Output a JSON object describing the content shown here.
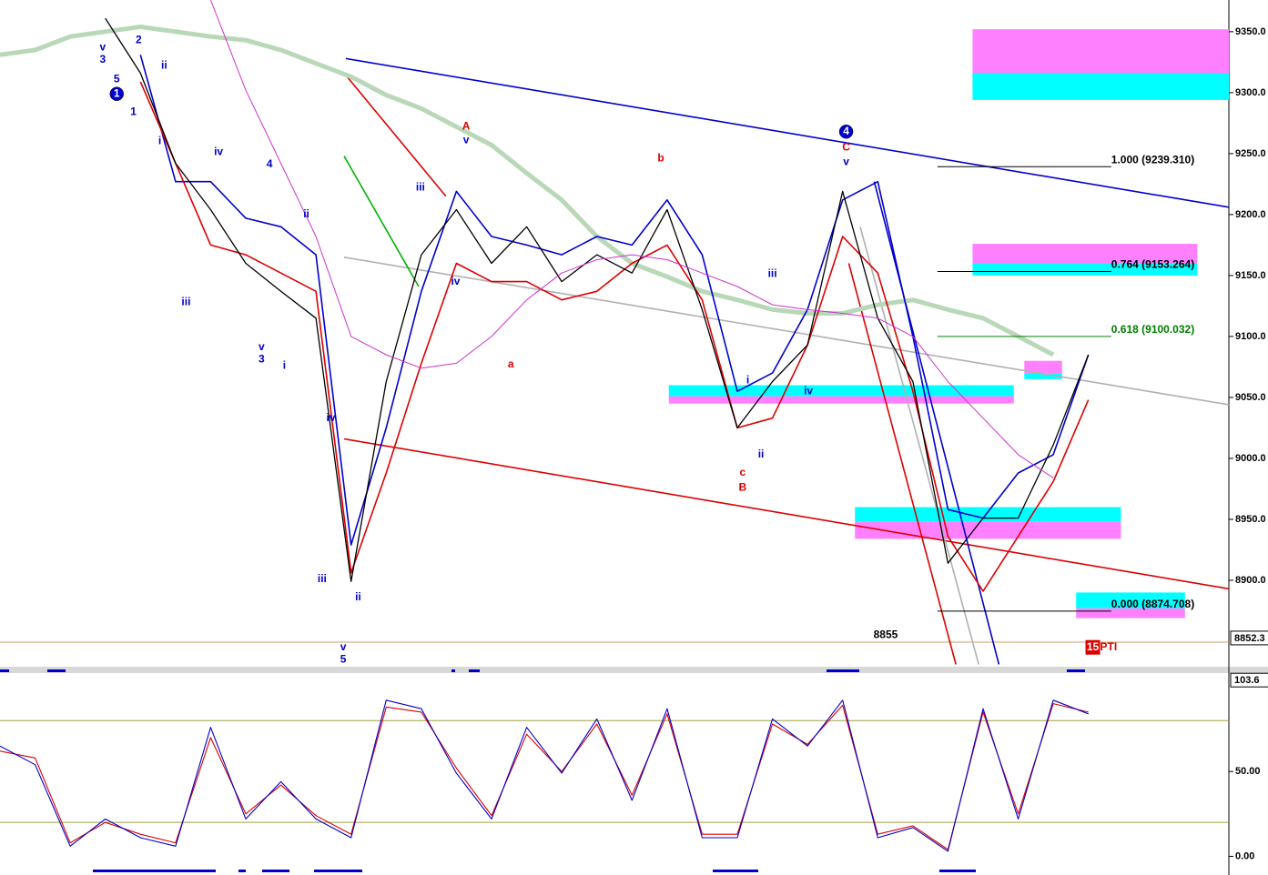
{
  "chart_data": [
    {
      "type": "line",
      "xlim": [
        0,
        140
      ],
      "ylim": [
        8850,
        9376
      ],
      "grid": false,
      "yticks": [
        {
          "value": 8900,
          "label": "8900.0"
        },
        {
          "value": 8950,
          "label": "8950.0"
        },
        {
          "value": 9000,
          "label": "9000.0"
        },
        {
          "value": 9050,
          "label": "9050.0"
        },
        {
          "value": 9100,
          "label": "9100.0"
        },
        {
          "value": 9150,
          "label": "9150.0"
        },
        {
          "value": 9200,
          "label": "9200.0"
        },
        {
          "value": 9250,
          "label": "9250.0"
        },
        {
          "value": 9300,
          "label": "9300.0"
        },
        {
          "value": 9350,
          "label": "9350.0"
        }
      ],
      "x": [
        0,
        4,
        8,
        12,
        16,
        20,
        24,
        28,
        32,
        36,
        40,
        44,
        48,
        52,
        56,
        60,
        64,
        68,
        72,
        76,
        80,
        84,
        88,
        92,
        96,
        100,
        104,
        108,
        112,
        116,
        120,
        124
      ],
      "series": [
        {
          "color": "#000000",
          "values": [
            null,
            null,
            null,
            9361,
            9316,
            9242,
            9204,
            9160,
            9137,
            9115,
            8899,
            9063,
            9167,
            9204,
            9160,
            9190,
            9145,
            9167,
            9152,
            9204,
            9122,
            9025,
            9063,
            9093,
            9219,
            9115,
            9063,
            8914,
            8951,
            8951,
            9011,
            9085
          ]
        },
        {
          "color": "#0000cc",
          "values": [
            null,
            null,
            null,
            null,
            9331,
            9227,
            9227,
            9197,
            9190,
            9167,
            8929,
            9025,
            9137,
            9219,
            9182,
            9175,
            9167,
            9182,
            9175,
            9212,
            9167,
            9055,
            9070,
            9122,
            9212,
            9227,
            9100,
            8958,
            8951,
            8988,
            9003,
            9085
          ]
        },
        {
          "color": "#dd0000",
          "values": [
            null,
            null,
            null,
            null,
            9309,
            9242,
            9175,
            9167,
            9152,
            9137,
            8906,
            8988,
            9078,
            9160,
            9145,
            9145,
            9130,
            9137,
            9160,
            9175,
            9130,
            9025,
            9033,
            9093,
            9182,
            9152,
            9055,
            8936,
            8891,
            8936,
            8981,
            9048
          ]
        },
        {
          "color": "#b8d8b8",
          "values": [
            9331,
            9335,
            9346,
            9350,
            9354,
            9350,
            9346,
            9343,
            9335,
            9324,
            9313,
            9298,
            9287,
            9272,
            9257,
            9234,
            9212,
            9182,
            9160,
            9149,
            9137,
            9130,
            9122,
            9119,
            9119,
            9126,
            9130,
            9122,
            9115,
            9100,
            9085,
            null
          ]
        },
        {
          "color": "#cc33cc",
          "values": [
            null,
            null,
            null,
            null,
            null,
            null,
            9376,
            9302,
            9242,
            9182,
            9100,
            9085,
            9074,
            9078,
            9100,
            9130,
            9152,
            9163,
            9167,
            9163,
            9152,
            9141,
            9126,
            9122,
            9119,
            9115,
            9100,
            9063,
            9033,
            9003,
            8984,
            null
          ]
        }
      ],
      "trendlines": [
        {
          "color": "#0000cc",
          "x": [
            39.4,
            140
          ],
          "y": [
            9328,
            9206
          ]
        },
        {
          "color": "#dd0000",
          "x": [
            39.2,
            140
          ],
          "y": [
            9016,
            8893
          ]
        },
        {
          "color": "#b0b0b0",
          "x": [
            39.2,
            140
          ],
          "y": [
            9165,
            9044
          ]
        },
        {
          "color": "#dd0000",
          "x": [
            96.7,
            108.9
          ],
          "y": [
            9160,
            8831
          ]
        },
        {
          "color": "#0000cc",
          "x": [
            99.6,
            113.8
          ],
          "y": [
            9227,
            8831
          ]
        },
        {
          "color": "#b0b0b0",
          "x": [
            98,
            111.5
          ],
          "y": [
            9190,
            8831
          ]
        },
        {
          "color": "#00b000",
          "x": [
            39.2,
            47.7
          ],
          "y": [
            9248,
            9141
          ]
        },
        {
          "color": "#dd0000",
          "x": [
            39.2,
            50.8
          ],
          "y": [
            9316,
            9215
          ]
        }
      ],
      "zones": [
        {
          "color": "#ff80ff",
          "x": [
            110.8,
            140
          ],
          "y": [
            9305,
            9352
          ]
        },
        {
          "color": "#00ffff",
          "x": [
            110.8,
            140
          ],
          "y": [
            9294,
            9316
          ]
        },
        {
          "color": "#ff80ff",
          "x": [
            110.8,
            136.4
          ],
          "y": [
            9160,
            9176
          ]
        },
        {
          "color": "#00ffff",
          "x": [
            110.8,
            136.4
          ],
          "y": [
            9150,
            9160
          ]
        },
        {
          "color": "#00ffff",
          "x": [
            76.2,
            115.5
          ],
          "y": [
            9051,
            9060
          ]
        },
        {
          "color": "#ff80ff",
          "x": [
            76.2,
            115.5
          ],
          "y": [
            9045,
            9051
          ]
        },
        {
          "color": "#00ffff",
          "x": [
            97.4,
            127.7
          ],
          "y": [
            8948,
            8960
          ]
        },
        {
          "color": "#ff80ff",
          "x": [
            97.4,
            127.7
          ],
          "y": [
            8934,
            8948
          ]
        },
        {
          "color": "#ff80ff",
          "x": [
            116.7,
            121
          ],
          "y": [
            9070,
            9080
          ]
        },
        {
          "color": "#00ffff",
          "x": [
            116.7,
            121
          ],
          "y": [
            9065,
            9070
          ]
        },
        {
          "color": "#00ffff",
          "x": [
            122.6,
            135
          ],
          "y": [
            8877,
            8890
          ]
        },
        {
          "color": "#ff80ff",
          "x": [
            122.6,
            135
          ],
          "y": [
            8869,
            8877
          ]
        }
      ],
      "fib": {
        "x": [
          106.8,
          126.6
        ],
        "levels": [
          {
            "value": 9239.31,
            "label": "1.000 (9239.310)",
            "color": "#000000"
          },
          {
            "value": 9153.264,
            "label": "0.764 (9153.264)",
            "color": "#000000"
          },
          {
            "value": 9100.032,
            "label": "0.618 (9100.032)",
            "color": "#008000"
          },
          {
            "value": 8874.708,
            "label": "0.000 (8874.708)",
            "color": "#000000"
          }
        ]
      },
      "price_marker": 8852.3,
      "annotations": [
        {
          "text": "v",
          "x": 11.7,
          "y": 9337,
          "color": "#0000cc"
        },
        {
          "text": "3",
          "x": 11.7,
          "y": 9327,
          "color": "#0000cc"
        },
        {
          "text": "5",
          "x": 13.3,
          "y": 9311,
          "color": "#0000cc"
        },
        {
          "text": "1",
          "x": 13.3,
          "y": 9299,
          "color": "#0000cc",
          "circle": true
        },
        {
          "text": "2",
          "x": 15.8,
          "y": 9343,
          "color": "#0000cc"
        },
        {
          "text": "ii",
          "x": 18.7,
          "y": 9322,
          "color": "#0000cc"
        },
        {
          "text": "1",
          "x": 15.2,
          "y": 9284,
          "color": "#0000cc"
        },
        {
          "text": "i",
          "x": 18.2,
          "y": 9260,
          "color": "#0000cc"
        },
        {
          "text": "iv",
          "x": 24.9,
          "y": 9251,
          "color": "#0000cc"
        },
        {
          "text": "4",
          "x": 30.7,
          "y": 9241,
          "color": "#0000cc"
        },
        {
          "text": "ii",
          "x": 34.9,
          "y": 9200,
          "color": "#0000cc"
        },
        {
          "text": "iii",
          "x": 21.2,
          "y": 9128,
          "color": "#0000cc"
        },
        {
          "text": "v",
          "x": 29.8,
          "y": 9091,
          "color": "#0000cc"
        },
        {
          "text": "3",
          "x": 29.8,
          "y": 9081,
          "color": "#0000cc"
        },
        {
          "text": "i",
          "x": 32.4,
          "y": 9076,
          "color": "#0000cc"
        },
        {
          "text": "iii",
          "x": 47.9,
          "y": 9222,
          "color": "#0000cc"
        },
        {
          "text": "iv",
          "x": 51.9,
          "y": 9145,
          "color": "#0000cc"
        },
        {
          "text": "A",
          "x": 53.1,
          "y": 9272,
          "color": "#dd0000"
        },
        {
          "text": "v",
          "x": 53.1,
          "y": 9261,
          "color": "#0000cc"
        },
        {
          "text": "a",
          "x": 58.2,
          "y": 9077,
          "color": "#dd0000"
        },
        {
          "text": "b",
          "x": 75.3,
          "y": 9246,
          "color": "#dd0000"
        },
        {
          "text": "iv",
          "x": 37.7,
          "y": 9033,
          "color": "#0000cc"
        },
        {
          "text": "iii",
          "x": 36.7,
          "y": 8901,
          "color": "#0000cc"
        },
        {
          "text": "ii",
          "x": 40.8,
          "y": 8886,
          "color": "#0000cc"
        },
        {
          "text": "v",
          "x": 39.1,
          "y": 8845,
          "color": "#0000cc"
        },
        {
          "text": "5",
          "x": 39.1,
          "y": 8835,
          "color": "#0000cc"
        },
        {
          "text": "iii",
          "x": 88,
          "y": 9151,
          "color": "#0000cc"
        },
        {
          "text": "i",
          "x": 85.2,
          "y": 9064,
          "color": "#0000cc"
        },
        {
          "text": "iv",
          "x": 92.1,
          "y": 9055,
          "color": "#0000cc"
        },
        {
          "text": "ii",
          "x": 86.7,
          "y": 9003,
          "color": "#0000cc"
        },
        {
          "text": "c",
          "x": 84.6,
          "y": 8988,
          "color": "#dd0000"
        },
        {
          "text": "B",
          "x": 84.6,
          "y": 8976,
          "color": "#dd0000"
        },
        {
          "text": "4",
          "x": 96.4,
          "y": 9268,
          "color": "#0000cc",
          "circle": true
        },
        {
          "text": "C",
          "x": 96.4,
          "y": 9255,
          "color": "#dd0000"
        },
        {
          "text": "v",
          "x": 96.4,
          "y": 9243,
          "color": "#0000cc"
        },
        {
          "text": "8855",
          "x": 100.9,
          "y": 8855,
          "color": "#000000"
        },
        {
          "text": "15",
          "x": 124.5,
          "y": 8845,
          "color": "#dd0000",
          "box": true
        },
        {
          "text": "PTI",
          "x": 126.3,
          "y": 8845,
          "color": "#dd0000"
        }
      ]
    },
    {
      "type": "line",
      "xlim": [
        0,
        140
      ],
      "ylim": [
        -11,
        108
      ],
      "grid": false,
      "yticks": [
        {
          "value": 0,
          "label": "0.00"
        },
        {
          "value": 50,
          "label": "50.00"
        }
      ],
      "levels": [
        20,
        80
      ],
      "level_color": "#a0a040",
      "price_marker": 103.6,
      "x": [
        0,
        4,
        8,
        12,
        16,
        20,
        24,
        28,
        32,
        36,
        40,
        44,
        48,
        52,
        56,
        60,
        64,
        68,
        72,
        76,
        80,
        84,
        88,
        92,
        96,
        100,
        104,
        108,
        112,
        116,
        120,
        124
      ],
      "series": [
        {
          "color": "#0000cc",
          "values": [
            65,
            54,
            6,
            22,
            11,
            6,
            76,
            22,
            44,
            22,
            11,
            92,
            87,
            49,
            22,
            76,
            49,
            81,
            33,
            87,
            11,
            11,
            81,
            65,
            92,
            11,
            17,
            3,
            87,
            22,
            92,
            84
          ]
        },
        {
          "color": "#dd0000",
          "values": [
            62,
            58,
            8,
            20,
            13,
            8,
            70,
            25,
            42,
            24,
            13,
            88,
            85,
            52,
            24,
            72,
            50,
            78,
            36,
            84,
            13,
            13,
            78,
            66,
            89,
            13,
            18,
            4,
            85,
            25,
            90,
            85
          ]
        }
      ]
    }
  ]
}
